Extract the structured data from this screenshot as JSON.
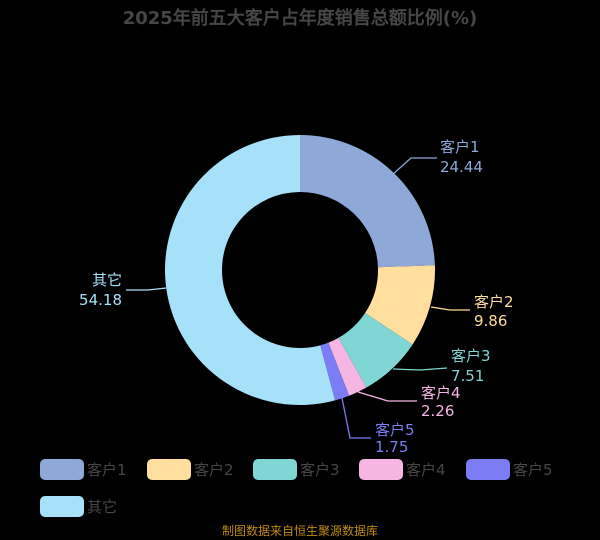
{
  "chart_data": {
    "type": "pie",
    "style": "donut",
    "title": "2025年前五大客户占年度销售总额比例(%)",
    "categories": [
      "客户1",
      "客户2",
      "客户3",
      "客户4",
      "客户5",
      "其它"
    ],
    "values": [
      24.44,
      9.86,
      7.51,
      2.26,
      1.75,
      54.18
    ],
    "colors": [
      "#8ea8d8",
      "#ffde9e",
      "#7fd6d4",
      "#f5b6e3",
      "#7c7cf4",
      "#a7e0f9"
    ],
    "start": "top",
    "direction": "clockwise",
    "legend_position": "bottom"
  },
  "footer": "制图数据来自恒生聚源数据库"
}
